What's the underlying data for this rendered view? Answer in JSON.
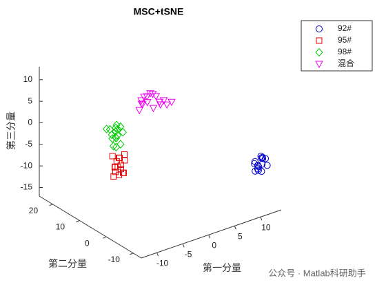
{
  "chart_data": {
    "type": "scatter3",
    "title": "MSC+tSNE",
    "xlabel": "第一分量",
    "ylabel": "第二分量",
    "zlabel": "第三分量",
    "xlim": [
      -13,
      14
    ],
    "ylim": [
      -13,
      25
    ],
    "zlim": [
      -17,
      13
    ],
    "xticks": [
      -10,
      -5,
      0,
      5,
      10
    ],
    "yticks": [
      -10,
      0,
      10,
      20
    ],
    "zticks": [
      -15,
      -10,
      -5,
      0,
      5,
      10
    ],
    "legend_position": "top-right",
    "series": [
      {
        "name": "92#",
        "color": "#0000cc",
        "marker": "circle",
        "x": [
          9.2,
          10.1,
          10.8,
          9.6,
          11.2,
          10.4,
          9.9,
          10.6,
          11.5,
          9.4,
          10.2,
          10.9,
          9.8,
          10.5,
          11.0,
          10.0
        ],
        "y": [
          -12.5,
          -11.8,
          -12.2,
          -13,
          -11.5,
          -12.8,
          -11.2,
          -12,
          -12.6,
          -11.9,
          -13,
          -11.6,
          -12.4,
          -11,
          -12.9,
          -12.3
        ],
        "z": [
          -4,
          -5.5,
          -3.8,
          -6,
          -4.5,
          -5,
          -7,
          -3.5,
          -5.8,
          -4.8,
          -6.5,
          -4.2,
          -5.2,
          -6.8,
          -3.9,
          -5.6
        ]
      },
      {
        "name": "95#",
        "color": "#e00000",
        "marker": "square",
        "x": [
          -8.5,
          -7.6,
          -8.2,
          -7.2,
          -8.8,
          -7.9,
          -8.4,
          -7.5,
          -8.1,
          -7.8,
          -8.6,
          -7.3,
          -8,
          -7.7,
          -8.3,
          -7.4
        ],
        "y": [
          4,
          5.5,
          6,
          4.5,
          5,
          6.5,
          3.5,
          5.2,
          4.8,
          6.2,
          5.8,
          4.2,
          5.4,
          3.8,
          6.8,
          4.6
        ],
        "z": [
          -6,
          -3,
          -5,
          -2,
          -4.5,
          -6.5,
          -3.5,
          -5.5,
          -2.5,
          -4,
          -7,
          -3.2,
          -4.8,
          -5.8,
          -2.8,
          -6.2
        ]
      },
      {
        "name": "98#",
        "color": "#00cc00",
        "marker": "diamond",
        "x": [
          -7.5,
          -6.8,
          -7.2,
          -6.4,
          -7.8,
          -6.9,
          -7.4,
          -6.6,
          -7,
          -7.6,
          -6.5,
          -7.1,
          -6.7,
          -7.3,
          -6.2,
          -7.9
        ],
        "y": [
          7,
          8.5,
          9,
          7.5,
          8,
          6.5,
          9.5,
          8.2,
          7.8,
          6.8,
          9.2,
          7.2,
          8.8,
          8.4,
          7,
          9.8
        ],
        "z": [
          1,
          2.5,
          0,
          3,
          1.5,
          -0.5,
          2,
          0.8,
          3.5,
          -1,
          1.2,
          2.8,
          0.2,
          -1.5,
          1.8,
          2.2
        ]
      },
      {
        "name": "混合",
        "color": "#ee00ee",
        "marker": "triangle-down",
        "x": [
          -2.5,
          -1.2,
          -0.5,
          0.8,
          -1.8,
          0.2,
          1.5,
          -0.8,
          2.2,
          -2,
          0.5,
          1.8,
          -1.5,
          2.8,
          0,
          -0.2
        ],
        "y": [
          8,
          7.5,
          9,
          6.5,
          8.5,
          7,
          8.2,
          9.5,
          6.8,
          7.8,
          8.8,
          7.2,
          9.2,
          6.2,
          7.6,
          8.4
        ],
        "z": [
          5,
          6.5,
          7,
          5.5,
          6,
          7.5,
          5.2,
          6.8,
          4.8,
          6.2,
          7.2,
          5.8,
          6.4,
          5.4,
          4.6,
          7.8
        ]
      }
    ]
  },
  "watermark": "公众号 · Matlab科研助手"
}
